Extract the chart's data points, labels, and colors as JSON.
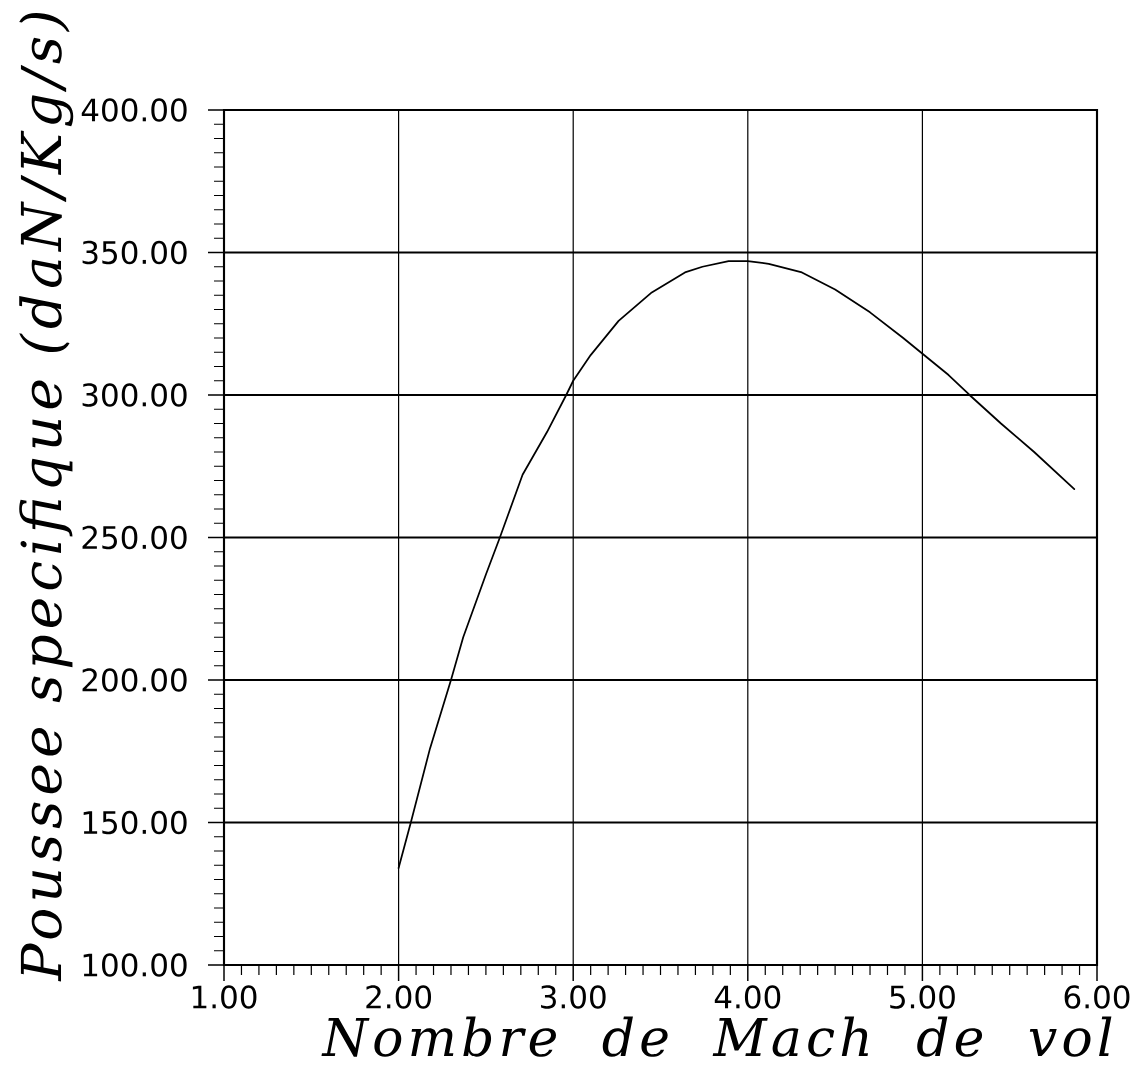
{
  "chart_data": {
    "type": "line",
    "xlabel": "Nombre de Mach de vol",
    "ylabel": "Poussee specifique (daN/Kg/s)",
    "x": [
      2.0,
      2.07,
      2.18,
      2.3,
      2.37,
      2.5,
      2.58,
      2.71,
      2.85,
      2.96,
      3.0,
      3.1,
      3.26,
      3.45,
      3.64,
      3.74,
      3.89,
      4.0,
      4.12,
      4.31,
      4.5,
      4.7,
      4.89,
      4.99,
      5.15,
      5.27,
      5.45,
      5.64,
      5.87
    ],
    "values": [
      134,
      150,
      176,
      200,
      215,
      237,
      250,
      272,
      287,
      300,
      305,
      314,
      326,
      336,
      343,
      345,
      347,
      347,
      346,
      343,
      337,
      329,
      320,
      315,
      307,
      300,
      290,
      280,
      267
    ],
    "color": "#000000",
    "grid": true,
    "xlim": [
      1,
      6
    ],
    "ylim": [
      100,
      400
    ],
    "xticks": [
      {
        "value": 1,
        "label": "1.00"
      },
      {
        "value": 1.1,
        "label": null
      },
      {
        "value": 1.2,
        "label": null
      },
      {
        "value": 1.3,
        "label": null
      },
      {
        "value": 1.4,
        "label": null
      },
      {
        "value": 1.5,
        "label": null
      },
      {
        "value": 1.6,
        "label": null
      },
      {
        "value": 1.7,
        "label": null
      },
      {
        "value": 1.8,
        "label": null
      },
      {
        "value": 1.9,
        "label": null
      },
      {
        "value": 2,
        "label": "2.00"
      },
      {
        "value": 2.1,
        "label": null
      },
      {
        "value": 2.2,
        "label": null
      },
      {
        "value": 2.3,
        "label": null
      },
      {
        "value": 2.4,
        "label": null
      },
      {
        "value": 2.5,
        "label": null
      },
      {
        "value": 2.6,
        "label": null
      },
      {
        "value": 2.7,
        "label": null
      },
      {
        "value": 2.8,
        "label": null
      },
      {
        "value": 2.9,
        "label": null
      },
      {
        "value": 3,
        "label": "3.00"
      },
      {
        "value": 3.1,
        "label": null
      },
      {
        "value": 3.2,
        "label": null
      },
      {
        "value": 3.3,
        "label": null
      },
      {
        "value": 3.4,
        "label": null
      },
      {
        "value": 3.5,
        "label": null
      },
      {
        "value": 3.6,
        "label": null
      },
      {
        "value": 3.7,
        "label": null
      },
      {
        "value": 3.8,
        "label": null
      },
      {
        "value": 3.9,
        "label": null
      },
      {
        "value": 4,
        "label": "4.00"
      },
      {
        "value": 4.1,
        "label": null
      },
      {
        "value": 4.2,
        "label": null
      },
      {
        "value": 4.3,
        "label": null
      },
      {
        "value": 4.4,
        "label": null
      },
      {
        "value": 4.5,
        "label": null
      },
      {
        "value": 4.6,
        "label": null
      },
      {
        "value": 4.7,
        "label": null
      },
      {
        "value": 4.8,
        "label": null
      },
      {
        "value": 4.9,
        "label": null
      },
      {
        "value": 5,
        "label": "5.00"
      },
      {
        "value": 5.1,
        "label": null
      },
      {
        "value": 5.2,
        "label": null
      },
      {
        "value": 5.3,
        "label": null
      },
      {
        "value": 5.4,
        "label": null
      },
      {
        "value": 5.5,
        "label": null
      },
      {
        "value": 5.6,
        "label": null
      },
      {
        "value": 5.7,
        "label": null
      },
      {
        "value": 5.8,
        "label": null
      },
      {
        "value": 5.9,
        "label": null
      },
      {
        "value": 6,
        "label": "6.00"
      }
    ],
    "yticks": [
      {
        "value": 100,
        "label": "100.00"
      },
      {
        "value": 105,
        "label": null
      },
      {
        "value": 110,
        "label": null
      },
      {
        "value": 115,
        "label": null
      },
      {
        "value": 120,
        "label": null
      },
      {
        "value": 125,
        "label": null
      },
      {
        "value": 130,
        "label": null
      },
      {
        "value": 135,
        "label": null
      },
      {
        "value": 140,
        "label": null
      },
      {
        "value": 145,
        "label": null
      },
      {
        "value": 150,
        "label": "150.00"
      },
      {
        "value": 155,
        "label": null
      },
      {
        "value": 160,
        "label": null
      },
      {
        "value": 165,
        "label": null
      },
      {
        "value": 170,
        "label": null
      },
      {
        "value": 175,
        "label": null
      },
      {
        "value": 180,
        "label": null
      },
      {
        "value": 185,
        "label": null
      },
      {
        "value": 190,
        "label": null
      },
      {
        "value": 195,
        "label": null
      },
      {
        "value": 200,
        "label": "200.00"
      },
      {
        "value": 205,
        "label": null
      },
      {
        "value": 210,
        "label": null
      },
      {
        "value": 215,
        "label": null
      },
      {
        "value": 220,
        "label": null
      },
      {
        "value": 225,
        "label": null
      },
      {
        "value": 230,
        "label": null
      },
      {
        "value": 235,
        "label": null
      },
      {
        "value": 240,
        "label": null
      },
      {
        "value": 245,
        "label": null
      },
      {
        "value": 250,
        "label": "250.00"
      },
      {
        "value": 255,
        "label": null
      },
      {
        "value": 260,
        "label": null
      },
      {
        "value": 265,
        "label": null
      },
      {
        "value": 270,
        "label": null
      },
      {
        "value": 275,
        "label": null
      },
      {
        "value": 280,
        "label": null
      },
      {
        "value": 285,
        "label": null
      },
      {
        "value": 290,
        "label": null
      },
      {
        "value": 295,
        "label": null
      },
      {
        "value": 300,
        "label": "300.00"
      },
      {
        "value": 305,
        "label": null
      },
      {
        "value": 310,
        "label": null
      },
      {
        "value": 315,
        "label": null
      },
      {
        "value": 320,
        "label": null
      },
      {
        "value": 325,
        "label": null
      },
      {
        "value": 330,
        "label": null
      },
      {
        "value": 335,
        "label": null
      },
      {
        "value": 340,
        "label": null
      },
      {
        "value": 345,
        "label": null
      },
      {
        "value": 350,
        "label": "350.00"
      },
      {
        "value": 355,
        "label": null
      },
      {
        "value": 360,
        "label": null
      },
      {
        "value": 365,
        "label": null
      },
      {
        "value": 370,
        "label": null
      },
      {
        "value": 375,
        "label": null
      },
      {
        "value": 380,
        "label": null
      },
      {
        "value": 385,
        "label": null
      },
      {
        "value": 390,
        "label": null
      },
      {
        "value": 395,
        "label": null
      },
      {
        "value": 400,
        "label": "400.00"
      }
    ]
  }
}
